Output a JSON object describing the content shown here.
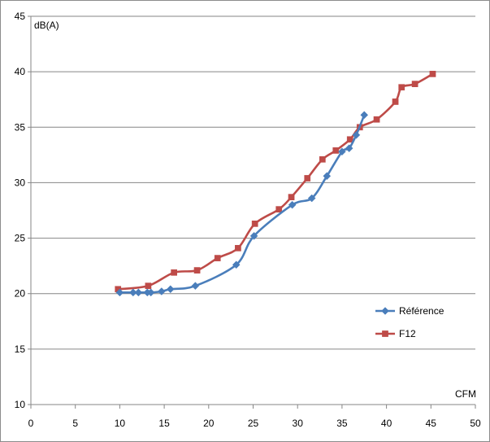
{
  "chart_data": {
    "type": "line",
    "title": "",
    "xlabel": "CFM",
    "ylabel": "dB(A)",
    "xlim": [
      0,
      50
    ],
    "ylim": [
      10,
      45
    ],
    "x_ticks": [
      0,
      5,
      10,
      15,
      20,
      25,
      30,
      35,
      40,
      45,
      50
    ],
    "y_ticks": [
      10,
      15,
      20,
      25,
      30,
      35,
      40,
      45
    ],
    "grid": "horizontal",
    "legend_position": "right",
    "smooth": true,
    "series": [
      {
        "name": "Référence",
        "color": "#4a7ebb",
        "marker": "diamond",
        "points": [
          [
            10.0,
            20.1
          ],
          [
            11.5,
            20.1
          ],
          [
            12.1,
            20.1
          ],
          [
            13.1,
            20.1
          ],
          [
            13.5,
            20.1
          ],
          [
            14.7,
            20.2
          ],
          [
            15.7,
            20.4
          ],
          [
            18.5,
            20.7
          ],
          [
            23.1,
            22.6
          ],
          [
            25.1,
            25.2
          ],
          [
            29.4,
            28.0
          ],
          [
            31.6,
            28.6
          ],
          [
            33.3,
            30.6
          ],
          [
            35.0,
            32.8
          ],
          [
            35.8,
            33.1
          ],
          [
            36.6,
            34.3
          ],
          [
            37.5,
            36.1
          ]
        ]
      },
      {
        "name": "F12",
        "color": "#be4b48",
        "marker": "square",
        "points": [
          [
            9.8,
            20.4
          ],
          [
            13.2,
            20.7
          ],
          [
            16.1,
            21.9
          ],
          [
            18.7,
            22.1
          ],
          [
            21.0,
            23.2
          ],
          [
            23.3,
            24.1
          ],
          [
            25.2,
            26.3
          ],
          [
            27.9,
            27.6
          ],
          [
            29.3,
            28.7
          ],
          [
            31.1,
            30.4
          ],
          [
            32.8,
            32.1
          ],
          [
            34.3,
            32.9
          ],
          [
            35.9,
            33.9
          ],
          [
            37.0,
            35.0
          ],
          [
            38.9,
            35.7
          ],
          [
            41.0,
            37.3
          ],
          [
            41.7,
            38.6
          ],
          [
            43.2,
            38.9
          ],
          [
            45.2,
            39.8
          ]
        ]
      }
    ]
  }
}
